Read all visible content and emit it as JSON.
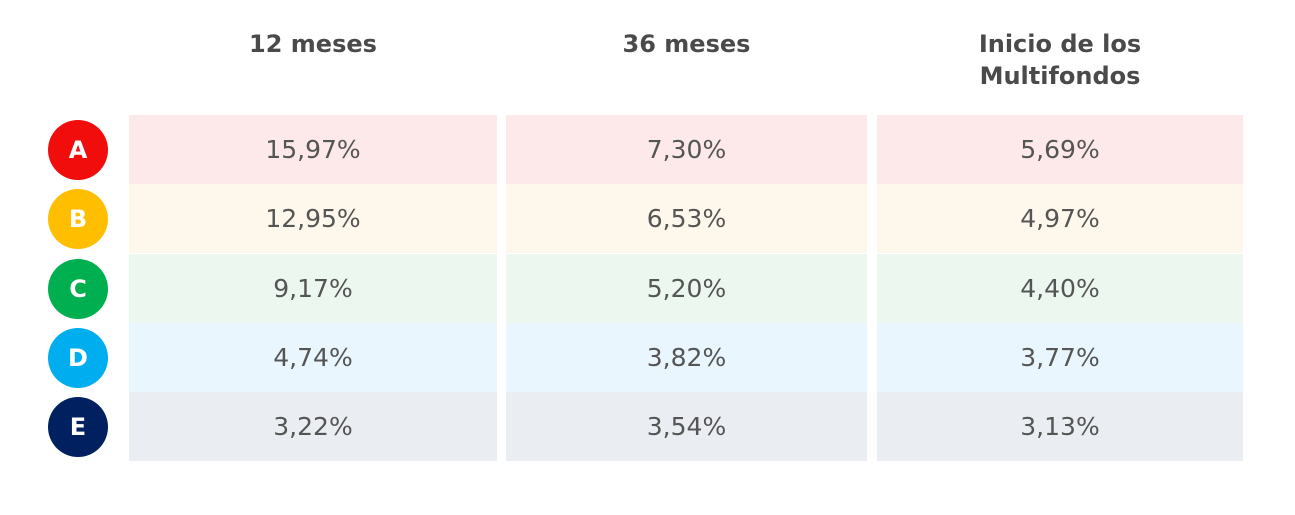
{
  "table": {
    "header": [
      "12 meses",
      "36 meses",
      "Inicio de los Multifondos"
    ],
    "rows": [
      {
        "fund": "A",
        "cells": [
          "15,97%",
          "7,30%",
          "5,69%"
        ]
      },
      {
        "fund": "B",
        "cells": [
          "12,95%",
          "6,53%",
          "4,97%"
        ]
      },
      {
        "fund": "C",
        "cells": [
          "9,17%",
          "5,20%",
          "4,40%"
        ]
      },
      {
        "fund": "D",
        "cells": [
          "4,74%",
          "3,82%",
          "3,77%"
        ]
      },
      {
        "fund": "E",
        "cells": [
          "3,22%",
          "3,54%",
          "3,13%"
        ]
      }
    ]
  }
}
